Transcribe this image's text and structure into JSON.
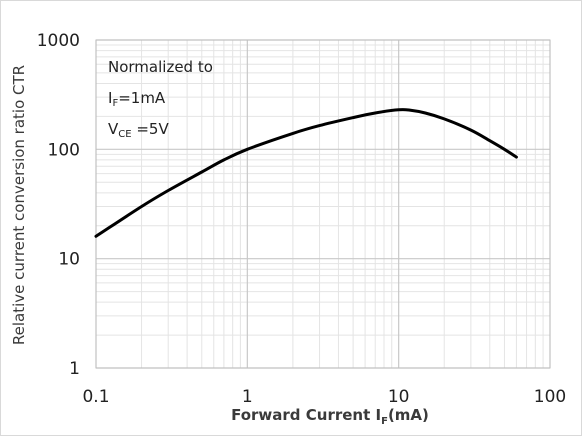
{
  "chart_data": {
    "type": "line",
    "xscale": "log",
    "yscale": "log",
    "xlim": [
      0.1,
      100
    ],
    "ylim": [
      1,
      1000
    ],
    "grid": true,
    "x_ticks": [
      "0.1",
      "1",
      "10",
      "100"
    ],
    "y_ticks": [
      "1",
      "10",
      "100",
      "1000"
    ],
    "xlabel": {
      "main": "Forward Current I",
      "sub": "F",
      "unit": "(mA)"
    },
    "ylabel": "Relative current conversion ratio CTR",
    "annotations": {
      "line1": "Normalized to",
      "line2_main": "I",
      "line2_sub": "F",
      "line2_rest": "=1mA",
      "line3_main": "V",
      "line3_sub": "CE",
      "line3_rest": " =5V"
    },
    "series": [
      {
        "color": "#000000",
        "points": [
          [
            0.1,
            16
          ],
          [
            0.2,
            30
          ],
          [
            0.3,
            42
          ],
          [
            0.5,
            62
          ],
          [
            0.7,
            80
          ],
          [
            1,
            100
          ],
          [
            2,
            140
          ],
          [
            3,
            165
          ],
          [
            5,
            195
          ],
          [
            7,
            215
          ],
          [
            10,
            230
          ],
          [
            12,
            228
          ],
          [
            15,
            215
          ],
          [
            20,
            190
          ],
          [
            30,
            150
          ],
          [
            40,
            120
          ],
          [
            50,
            100
          ],
          [
            60,
            85
          ]
        ]
      }
    ]
  }
}
